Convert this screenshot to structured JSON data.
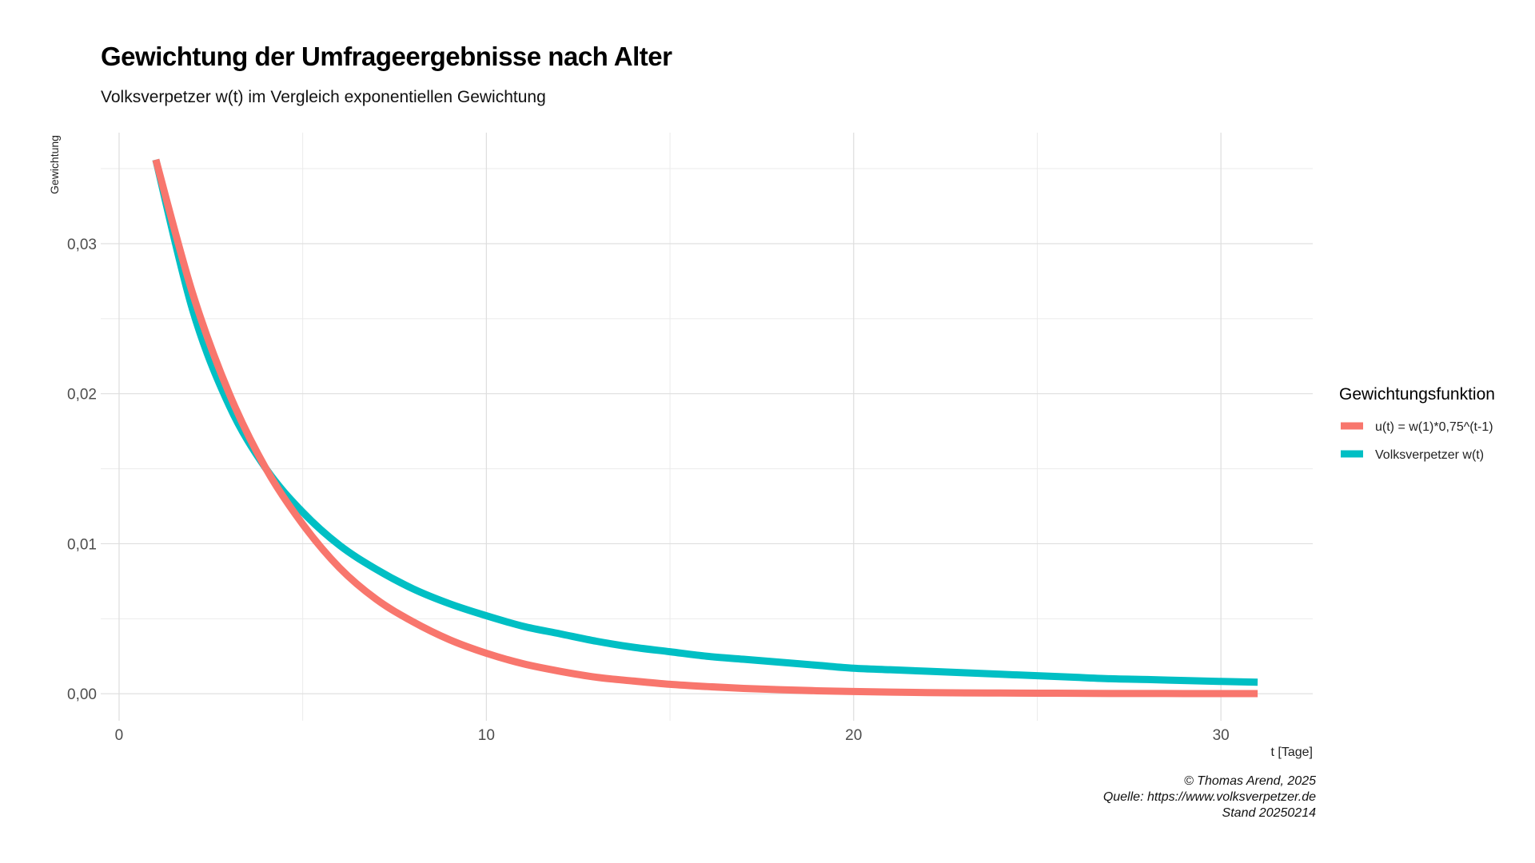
{
  "chart_data": {
    "type": "line",
    "title": "Gewichtung der Umfrageergebnisse nach Alter",
    "subtitle": "Volksverpetzer w(t) im Vergleich exponentiellen Gewichtung",
    "xlabel": "t [Tage]",
    "ylabel": "Gewichtung",
    "xlim": [
      -0.5,
      32.5
    ],
    "ylim": [
      -0.0018,
      0.0374
    ],
    "x_ticks": [
      0,
      10,
      20,
      30
    ],
    "x_tick_labels": [
      "0",
      "10",
      "20",
      "30"
    ],
    "y_ticks": [
      0.0,
      0.01,
      0.02,
      0.03
    ],
    "y_tick_labels": [
      "0,00",
      "0,01",
      "0,02",
      "0,03"
    ],
    "grid": true,
    "legend": {
      "title": "Gewichtungsfunktion",
      "position": "right"
    },
    "series": [
      {
        "name": "u(t) = w(1)*0,75^(t-1)",
        "color": "#F8766D",
        "x": [
          1,
          2,
          3,
          4,
          5,
          6,
          7,
          8,
          9,
          10,
          11,
          12,
          13,
          14,
          15,
          16,
          17,
          18,
          19,
          20,
          21,
          22,
          23,
          24,
          25,
          26,
          27,
          28,
          29,
          30,
          31
        ],
        "y": [
          0.0356,
          0.0267,
          0.02,
          0.015,
          0.0113,
          0.0084,
          0.0063,
          0.0048,
          0.0036,
          0.0027,
          0.002,
          0.0015,
          0.0011,
          0.00085,
          0.00063,
          0.00048,
          0.00036,
          0.00027,
          0.0002,
          0.00015,
          0.00011,
          8e-05,
          6e-05,
          5e-05,
          4e-05,
          3e-05,
          2e-05,
          2e-05,
          1e-05,
          1e-05,
          1e-05
        ]
      },
      {
        "name": "Volksverpetzer w(t)",
        "color": "#00BFC4",
        "x": [
          1,
          2,
          3,
          4,
          5,
          6,
          7,
          8,
          9,
          10,
          11,
          12,
          13,
          14,
          15,
          16,
          17,
          18,
          19,
          20,
          21,
          22,
          23,
          24,
          25,
          26,
          27,
          28,
          29,
          30,
          31
        ],
        "y": [
          0.0356,
          0.0256,
          0.0192,
          0.015,
          0.0121,
          0.0099,
          0.0083,
          0.007,
          0.006,
          0.0052,
          0.0045,
          0.004,
          0.0035,
          0.0031,
          0.0028,
          0.0025,
          0.0023,
          0.0021,
          0.0019,
          0.0017,
          0.0016,
          0.0015,
          0.0014,
          0.0013,
          0.0012,
          0.0011,
          0.001,
          0.00095,
          0.00088,
          0.00082,
          0.00077
        ]
      }
    ]
  },
  "caption": {
    "line1": "© Thomas Arend, 2025",
    "line2": "Quelle: https://www.volksverpetzer.de",
    "line3": "Stand 20250214"
  }
}
